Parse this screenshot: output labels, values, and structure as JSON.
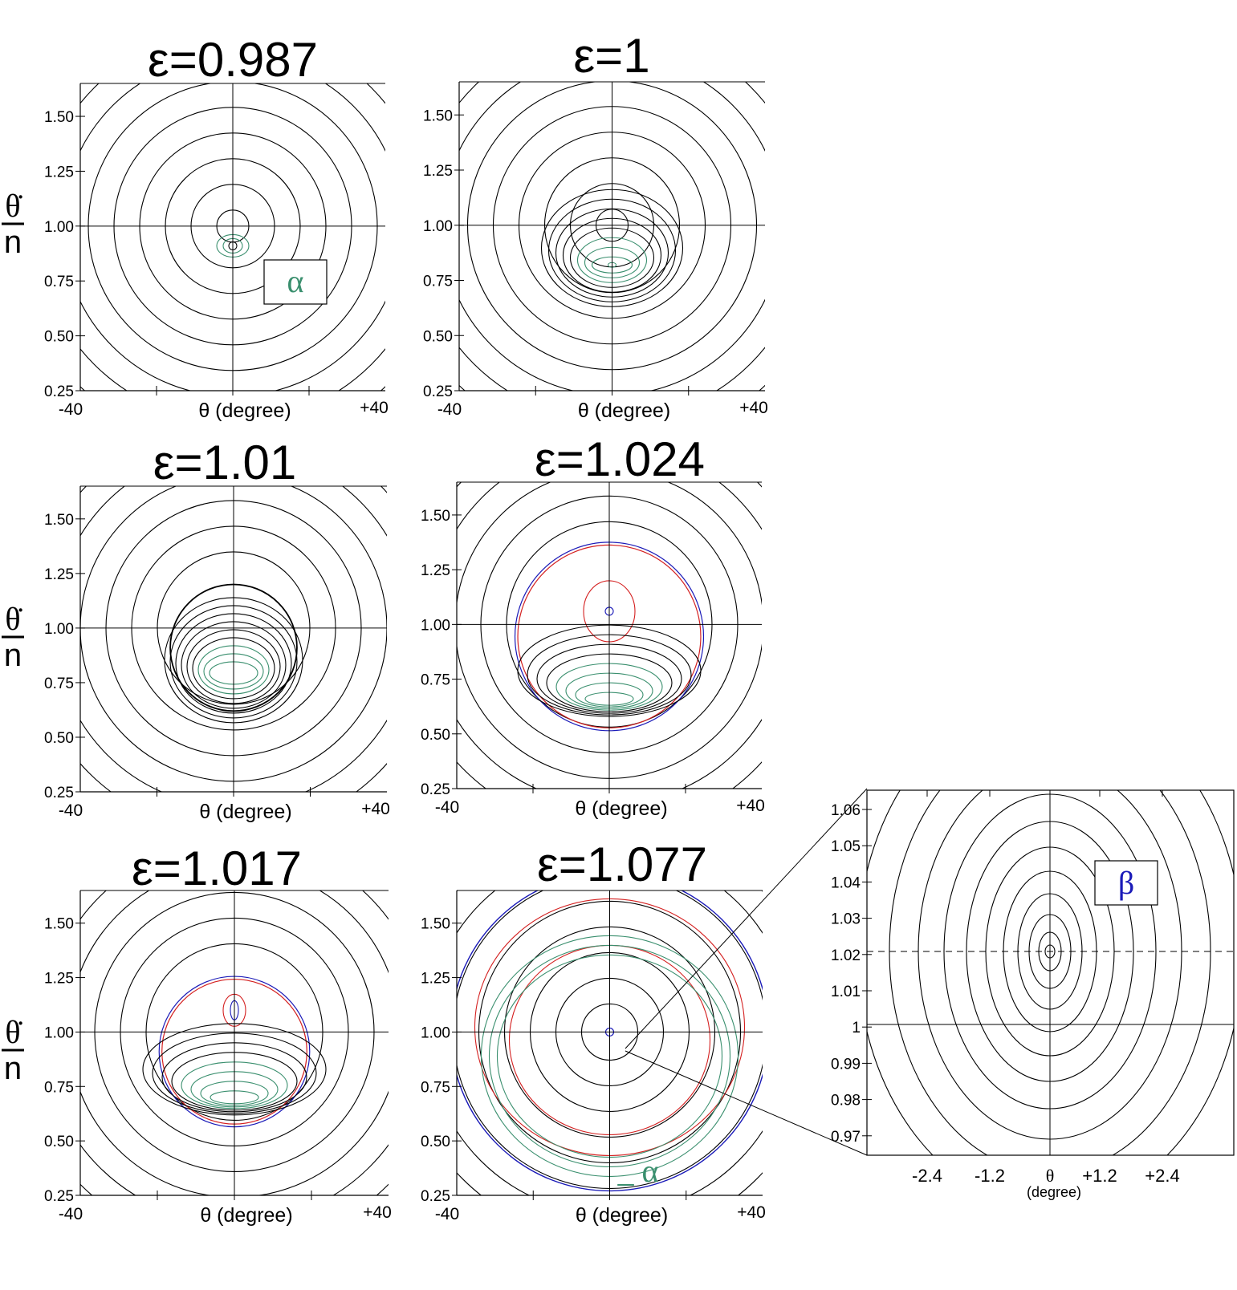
{
  "colors": {
    "black": "#000000",
    "green": "#3a8f6e",
    "red": "#d42020",
    "blue": "#1a1ab8"
  },
  "common": {
    "y_ticks": [
      "1.50",
      "1.25",
      "1.00",
      "0.75",
      "0.50",
      "0.25"
    ],
    "x_left": "-40",
    "x_right": "+40",
    "x_label": "θ (degree)",
    "y_label_top": "θ̇",
    "y_label_bottom": "n"
  },
  "panels": [
    {
      "title": "ε=0.987",
      "label": "α",
      "label_color": "#3a8f6e"
    },
    {
      "title": "ε=1"
    },
    {
      "title": "ε=1.01"
    },
    {
      "title": "ε=1.024"
    },
    {
      "title": "ε=1.017"
    },
    {
      "title": "ε=1.077",
      "label": "α",
      "label_color": "#3a8f6e"
    }
  ],
  "zoom": {
    "y_ticks": [
      "1.06",
      "1.05",
      "1.04",
      "1.03",
      "1.02",
      "1.01",
      "1",
      "0.99",
      "0.98",
      "0.97"
    ],
    "x_ticks": [
      "-2.4",
      "-1.2",
      "θ",
      "+1.2",
      "+2.4"
    ],
    "x_sub": "(degree)",
    "label": "β",
    "label_color": "#1a1ab8"
  }
}
